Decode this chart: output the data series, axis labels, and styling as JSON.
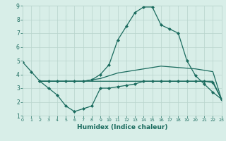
{
  "line1_x": [
    0,
    1,
    2,
    3,
    4,
    5,
    6,
    7,
    8,
    9,
    10,
    11,
    12,
    13,
    14,
    15,
    16,
    17,
    18,
    19,
    20,
    21,
    22,
    23
  ],
  "line1_y": [
    4.9,
    4.2,
    3.5,
    3.5,
    3.5,
    3.5,
    3.5,
    3.5,
    3.6,
    4.0,
    4.7,
    6.5,
    7.5,
    8.5,
    8.9,
    8.9,
    7.6,
    7.3,
    7.0,
    5.0,
    3.9,
    3.3,
    2.7,
    2.2
  ],
  "line2_x": [
    2,
    3,
    4,
    5,
    6,
    7,
    8,
    9,
    10,
    11,
    12,
    13,
    14,
    15,
    16,
    17,
    18,
    19,
    20,
    21,
    22,
    23
  ],
  "line2_y": [
    3.5,
    3.5,
    3.5,
    3.5,
    3.5,
    3.5,
    3.6,
    3.7,
    3.9,
    4.1,
    4.2,
    4.3,
    4.4,
    4.5,
    4.6,
    4.55,
    4.5,
    4.45,
    4.4,
    4.3,
    4.2,
    2.2
  ],
  "line3_x": [
    2,
    3,
    4,
    5,
    6,
    7,
    8,
    9,
    10,
    11,
    12,
    13,
    14,
    15,
    16,
    17,
    18,
    19,
    20,
    21,
    22,
    23
  ],
  "line3_y": [
    3.5,
    3.0,
    2.5,
    1.7,
    1.3,
    1.5,
    1.7,
    3.0,
    3.0,
    3.1,
    3.2,
    3.3,
    3.5,
    3.5,
    3.5,
    3.5,
    3.5,
    3.5,
    3.5,
    3.5,
    3.4,
    2.2
  ],
  "line4_x": [
    2,
    3,
    4,
    5,
    6,
    7,
    8,
    9,
    10,
    11,
    12,
    13,
    14,
    15,
    16,
    17,
    18,
    19,
    20,
    21,
    22,
    23
  ],
  "line4_y": [
    3.5,
    3.5,
    3.5,
    3.5,
    3.5,
    3.5,
    3.5,
    3.5,
    3.5,
    3.5,
    3.5,
    3.5,
    3.5,
    3.5,
    3.5,
    3.5,
    3.5,
    3.5,
    3.5,
    3.5,
    3.5,
    2.2
  ],
  "color": "#1a6b5e",
  "bg_color": "#d8eee8",
  "grid_color": "#b8d4cc",
  "xlabel": "Humidex (Indice chaleur)",
  "xlabel_fontsize": 6.5,
  "ylim": [
    1,
    9
  ],
  "xlim": [
    0,
    23
  ],
  "yticks": [
    1,
    2,
    3,
    4,
    5,
    6,
    7,
    8,
    9
  ],
  "xticks": [
    0,
    1,
    2,
    3,
    4,
    5,
    6,
    7,
    8,
    9,
    10,
    11,
    12,
    13,
    14,
    15,
    16,
    17,
    18,
    19,
    20,
    21,
    22,
    23
  ],
  "marker": "D",
  "markersize": 2.0,
  "linewidth": 0.9
}
